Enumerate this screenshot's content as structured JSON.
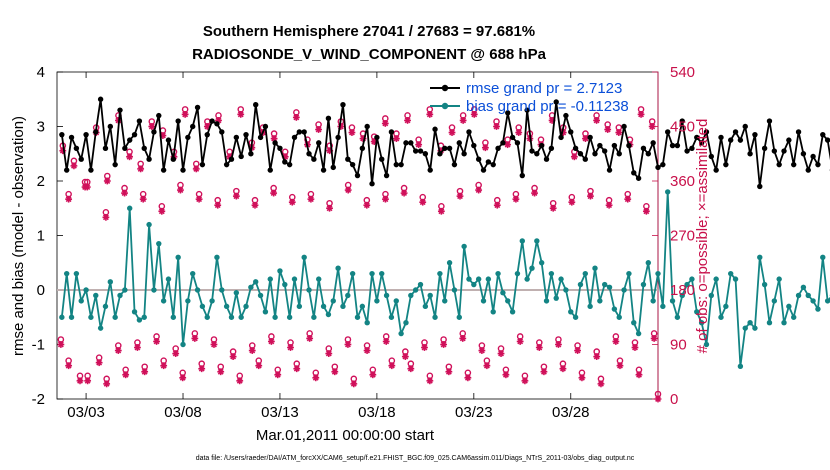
{
  "chart_data": {
    "type": "line",
    "title_line1": "Southern Hemisphere 27041 / 27683 = 97.681%",
    "title_line2": "RADIOSONDE_V_WIND_COMPONENT @ 688 hPa",
    "ylabel_left": "rmse and bias (model - observation)",
    "ylabel_right": "# of obs: o=possible; ×=assimilated",
    "xlabel": "Mar.01,2011 00:00:00 start",
    "footnote": "data file: /Users/raeder/DAI/ATM_forcXX/CAM6_setup/f.e21.FHIST_BGC.f09_025.CAM6assim.011/Diags_NTrS_2011-03/obs_diag_output.nc",
    "ylim_left": [
      -2,
      4
    ],
    "ylim_right": [
      0,
      540
    ],
    "xlim": [
      1.5,
      32.5
    ],
    "yticks_left": [
      "-2",
      "-1",
      "0",
      "1",
      "2",
      "3",
      "4"
    ],
    "yticks_right": [
      "0",
      "90",
      "180",
      "270",
      "360",
      "450",
      "540"
    ],
    "xticks": [
      {
        "x": 3,
        "label": "03/03"
      },
      {
        "x": 8,
        "label": "03/08"
      },
      {
        "x": 13,
        "label": "03/13"
      },
      {
        "x": 18,
        "label": "03/18"
      },
      {
        "x": 23,
        "label": "03/23"
      },
      {
        "x": 28,
        "label": "03/28"
      }
    ],
    "x_start": 1.75,
    "x_step": 0.25,
    "series": [
      {
        "name": "rmse",
        "legend_label": "rmse grand pr = 2.7123",
        "color": "#000000",
        "values": [
          2.85,
          2.2,
          2.8,
          2.6,
          2.4,
          2.85,
          2.2,
          2.9,
          3.5,
          2.6,
          3.0,
          2.3,
          3.3,
          2.6,
          2.75,
          2.85,
          3.1,
          2.6,
          2.4,
          2.9,
          3.2,
          2.2,
          2.75,
          2.4,
          3.1,
          2.2,
          2.8,
          3.0,
          3.35,
          2.3,
          2.85,
          3.1,
          3.05,
          2.9,
          2.3,
          2.4,
          2.8,
          2.45,
          2.85,
          2.5,
          3.4,
          2.8,
          3.0,
          2.2,
          2.7,
          2.6,
          2.35,
          2.3,
          2.8,
          2.9,
          2.9,
          2.5,
          2.4,
          2.7,
          2.2,
          3.15,
          2.25,
          2.8,
          3.4,
          2.4,
          2.3,
          2.1,
          2.6,
          3.0,
          1.95,
          2.8,
          2.4,
          2.1,
          2.9,
          2.3,
          2.3,
          2.7,
          2.7,
          2.55,
          2.55,
          2.5,
          2.2,
          2.95,
          2.5,
          2.6,
          2.6,
          2.3,
          2.7,
          2.5,
          2.9,
          2.65,
          2.4,
          2.2,
          2.35,
          2.3,
          2.6,
          2.7,
          3.25,
          2.8,
          2.7,
          2.1,
          3.3,
          2.55,
          2.5,
          2.65,
          2.4,
          2.6,
          3.45,
          2.8,
          3.2,
          2.9,
          2.6,
          2.5,
          2.4,
          2.8,
          2.5,
          2.65,
          2.55,
          2.2,
          2.65,
          2.5,
          3.0,
          2.65,
          2.15,
          2.05,
          2.6,
          2.5,
          2.7,
          2.25,
          2.3,
          2.9,
          2.65,
          2.65,
          3.1,
          2.55,
          2.6,
          2.8,
          2.7,
          2.9,
          2.45,
          2.2,
          2.8,
          2.3,
          2.75,
          2.9,
          2.75,
          3.0,
          2.5,
          2.85,
          1.9,
          2.6,
          3.1,
          2.55,
          2.3,
          2.55,
          2.75,
          2.3,
          2.9,
          2.5,
          2.2,
          2.45,
          2.3,
          2.85,
          2.75,
          2.2,
          2.6,
          2.25,
          2.9,
          2.65,
          2.35,
          2.9,
          2.4,
          3.0,
          2.55,
          2.3,
          2.7,
          3.1,
          2.35,
          2.2,
          2.65,
          2.35,
          2.95,
          2.6,
          2.8,
          2.65,
          2.2,
          2.65,
          2.7,
          2.65,
          2.4,
          2.9,
          2.65,
          2.65,
          2.25,
          2.55,
          2.85,
          2.6,
          3.0,
          2.6,
          2.5,
          2.75,
          2.5,
          2.3,
          2.65,
          2.65,
          2.55,
          2.2,
          2.5,
          2.65,
          2.65,
          2.4,
          2.7,
          2.4,
          2.6,
          2.85,
          2.6,
          2.75,
          2.65,
          2.55,
          2.7,
          2.5,
          2.25,
          2.6,
          2.55,
          2.7,
          2.4,
          2.6,
          2.75,
          2.55,
          2.6,
          2.5,
          2.3,
          2.4,
          2.6,
          2.5,
          2.3,
          2.6,
          2.45,
          2.3,
          2.75,
          2.5,
          2.55,
          2.4,
          2.75,
          2.5,
          2.6,
          2.25,
          2.5,
          2.6,
          2.4,
          2.85,
          2.55,
          2.3,
          2.4,
          2.6,
          2.45,
          2.5,
          2.55,
          2.35,
          2.65,
          2.45,
          2.6,
          2.4,
          2.3,
          2.55
        ]
      },
      {
        "name": "bias",
        "legend_label": "bias grand pr = -0.11238",
        "color": "#138484",
        "values": [
          -0.5,
          0.3,
          -0.5,
          0.3,
          -0.2,
          0.0,
          -0.5,
          -0.1,
          -0.7,
          -0.3,
          0.15,
          -0.5,
          -0.1,
          0.0,
          1.5,
          -0.4,
          -0.55,
          -0.5,
          1.2,
          0.0,
          0.85,
          -0.2,
          0.2,
          -0.5,
          0.6,
          -1.0,
          -0.2,
          0.3,
          0.0,
          -0.3,
          -0.5,
          -0.2,
          0.6,
          0.0,
          -0.3,
          -0.5,
          -0.05,
          -0.5,
          -0.3,
          0.05,
          0.15,
          -0.1,
          -0.4,
          0.2,
          -0.5,
          0.35,
          0.1,
          -0.5,
          0.2,
          -0.3,
          0.6,
          0.0,
          -0.5,
          0.2,
          -0.3,
          -0.45,
          -0.2,
          0.4,
          -0.3,
          -0.1,
          0.3,
          -0.5,
          -0.3,
          -0.6,
          0.3,
          -0.2,
          0.3,
          -0.1,
          -0.5,
          -0.2,
          -0.8,
          -0.6,
          -0.1,
          0.0,
          0.1,
          -0.3,
          -0.1,
          -0.5,
          0.3,
          -0.2,
          0.5,
          0.0,
          -0.5,
          0.8,
          0.2,
          0.1,
          0.2,
          -0.2,
          0.2,
          -0.4,
          0.3,
          -0.05,
          -0.2,
          -0.4,
          0.3,
          0.9,
          0.2,
          0.4,
          0.9,
          0.5,
          -0.2,
          0.3,
          -0.15,
          0.2,
          0.0,
          -0.4,
          -0.5,
          0.1,
          0.3,
          -0.3,
          0.4,
          -0.2,
          0.1,
          0.05,
          -0.35,
          -0.5,
          0.0,
          0.3,
          -0.6,
          -0.8,
          0.1,
          0.5,
          -0.2,
          0.3,
          -0.3,
          1.8,
          -0.2,
          -0.5,
          -0.1,
          0.1,
          0.2,
          -0.4,
          -0.6,
          -1.0,
          -0.1,
          0.2,
          -0.5,
          -0.3,
          0.3,
          0.2,
          -1.4,
          -0.7,
          -0.6,
          -0.7,
          0.6,
          0.1,
          -0.6,
          -0.2,
          0.2,
          -0.6,
          -0.3,
          -0.5,
          -0.1,
          0.05,
          -0.1,
          -0.2,
          -0.35,
          0.6,
          -0.2,
          -0.1,
          0.3,
          0.15,
          -0.2,
          -0.5,
          -0.4,
          0.1,
          -0.1,
          -0.1,
          -0.4,
          0.3,
          0.1,
          -0.05,
          0.2,
          -0.3,
          -0.2,
          -0.1,
          -0.25,
          -0.15,
          -0.3,
          -0.2,
          0.1,
          -0.3,
          -0.15,
          -0.35,
          -0.2,
          -0.1,
          -0.3,
          0.0,
          -0.2,
          -0.35,
          -0.1,
          -0.25,
          -0.3,
          -0.05,
          -0.25,
          -0.2,
          -0.15,
          -0.3,
          -0.2,
          -0.1,
          -0.25,
          -0.3,
          -0.15,
          -0.2,
          -0.1,
          -0.3,
          -0.2,
          -0.25,
          -0.15,
          -0.05,
          -0.2,
          -0.3,
          -0.25,
          -0.1,
          -0.2,
          -0.15,
          -0.2,
          -0.1,
          -0.25,
          -0.1,
          0.15,
          -0.4,
          -0.2,
          -0.3,
          -0.1,
          -0.05,
          -0.2,
          -0.15,
          -0.1,
          -0.2,
          -0.05,
          -0.1,
          -0.2,
          -0.15,
          -0.1,
          0.15,
          -0.4,
          -0.1,
          -0.2,
          -0.3,
          -0.25,
          -0.1,
          0.1,
          -0.2,
          -0.15,
          -0.2,
          -0.1,
          -0.2,
          -0.05,
          -0.25,
          -0.1,
          -0.15,
          -0.2
        ]
      }
    ],
    "obs_possible_high": [
      410,
      385,
      350,
      440,
      360,
      460,
      400,
      380,
      450,
      435,
      400,
      470,
      380,
      450,
      460,
      400,
      470,
      415,
      440,
      430,
      400,
      465,
      420,
      445,
      410,
      450,
      440,
      430,
      425,
      455,
      430,
      460,
      420,
      470,
      410,
      440,
      460,
      470,
      415,
      450,
      420,
      440,
      430,
      420,
      460,
      440,
      400,
      430,
      460,
      445,
      440,
      420,
      470,
      450
    ],
    "obs_possible_mid": [
      330,
      350,
      300,
      340,
      330,
      310,
      345,
      330,
      320,
      335,
      320,
      340,
      325,
      330,
      315,
      345,
      320,
      330,
      340,
      325,
      310,
      335,
      345,
      320,
      330,
      340,
      315,
      325,
      335,
      320,
      330,
      310
    ],
    "obs_possible_low": [
      90,
      30,
      60,
      80,
      85,
      95,
      75,
      100,
      90,
      70,
      80,
      95,
      85,
      100,
      75,
      90,
      80,
      95,
      70,
      85,
      90,
      100,
      80,
      75,
      95,
      85,
      90,
      80,
      70,
      95,
      85,
      100
    ],
    "obs_possible_vlow": [
      55,
      30,
      25,
      40,
      45,
      55,
      35,
      50,
      45,
      30,
      55,
      40,
      50,
      35,
      45,
      25,
      40,
      55,
      50,
      30,
      45,
      35,
      55,
      40,
      30,
      45,
      50,
      35,
      25,
      55,
      40,
      0
    ]
  }
}
